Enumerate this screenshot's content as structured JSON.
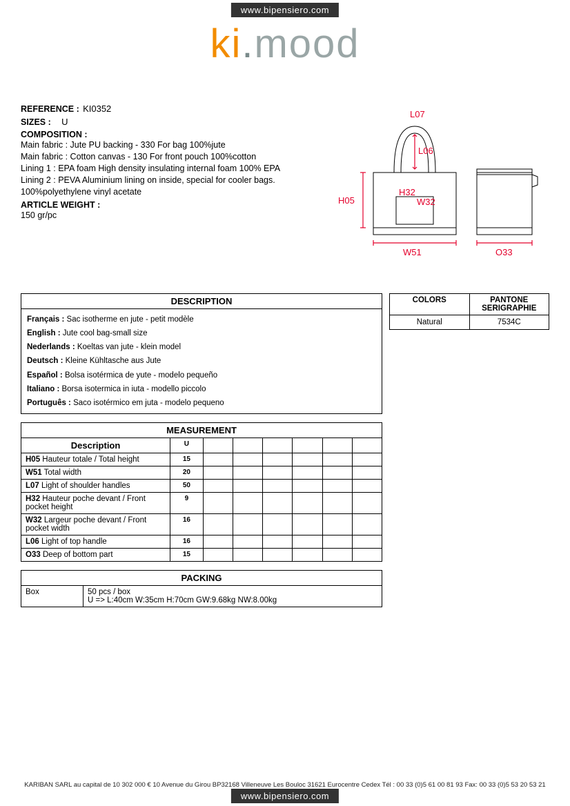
{
  "url_badge": "www.bipensiero.com",
  "logo": {
    "k": "k",
    "i": "i",
    "dot": ".",
    "mood": "mood"
  },
  "ref": {
    "label": "REFERENCE :",
    "value": "KI0352"
  },
  "sizes": {
    "label": "SIZES :",
    "value": "U"
  },
  "composition": {
    "label": "COMPOSITION :",
    "lines": [
      "Main fabric : Jute PU backing - 330 For bag 100%jute",
      "Main fabric : Cotton canvas - 130 For front pouch 100%cotton",
      "Lining 1 : EPA foam High density insulating internal foam 100% EPA",
      "Lining 2 : PEVA Aluminium lining on inside, special for cooler bags. 100%polyethylene vinyl acetate"
    ]
  },
  "weight": {
    "label": "ARTICLE WEIGHT :",
    "value": "150 gr/pc"
  },
  "diagram_labels": {
    "L07": "L07",
    "L06": "L06",
    "H05": "H05",
    "H32": "H32",
    "W32": "W32",
    "W51": "W51",
    "O33": "O33"
  },
  "diagram_colors": {
    "dim": "#e4002b",
    "stroke": "#000000"
  },
  "description": {
    "header": "DESCRIPTION",
    "rows": [
      {
        "lang": "Français :",
        "text": " Sac isotherme en jute - petit modèle"
      },
      {
        "lang": "English :",
        "text": " Jute cool bag-small size"
      },
      {
        "lang": "Nederlands :",
        "text": " Koeltas van jute - klein model"
      },
      {
        "lang": "Deutsch :",
        "text": " Kleine Kühltasche aus Jute"
      },
      {
        "lang": "Español :",
        "text": " Bolsa isotérmica de yute - modelo pequeño"
      },
      {
        "lang": "Italiano :",
        "text": " Borsa isotermica in iuta - modello piccolo"
      },
      {
        "lang": "Português :",
        "text": " Saco isotérmico em juta - modelo pequeno"
      }
    ]
  },
  "colors": {
    "h1": "COLORS",
    "h2": "PANTONE SERIGRAPHIE",
    "rows": [
      {
        "name": "Natural",
        "pantone": "7534C"
      }
    ]
  },
  "measurement": {
    "header": "MEASUREMENT",
    "sub_desc": "Description",
    "sub_u": "U",
    "rows": [
      {
        "code": "H05",
        "desc": " Hauteur totale / Total height",
        "u": "15"
      },
      {
        "code": "W51",
        "desc": " Total width",
        "u": "20"
      },
      {
        "code": "L07",
        "desc": " Light of shoulder handles",
        "u": "50"
      },
      {
        "code": "H32",
        "desc": " Hauteur poche devant / Front pocket height",
        "u": "9"
      },
      {
        "code": "W32",
        "desc": " Largeur poche devant / Front pocket width",
        "u": "16"
      },
      {
        "code": "L06",
        "desc": " Light of top handle",
        "u": "16"
      },
      {
        "code": "O33",
        "desc": " Deep of bottom part",
        "u": "15"
      }
    ]
  },
  "packing": {
    "header": "PACKING",
    "box_label": "Box",
    "line1": "50 pcs / box",
    "line2": "U => L:40cm W:35cm H:70cm GW:9.68kg NW:8.00kg"
  },
  "footer": "KARIBAN SARL au capital de 10 302 000 € 10 Avenue du Girou BP32168 Villeneuve Les Bouloc 31621 Eurocentre Cedex Tél : 00 33 (0)5 61 00 81 93 Fax: 00 33 (0)5 53 20 53 21"
}
